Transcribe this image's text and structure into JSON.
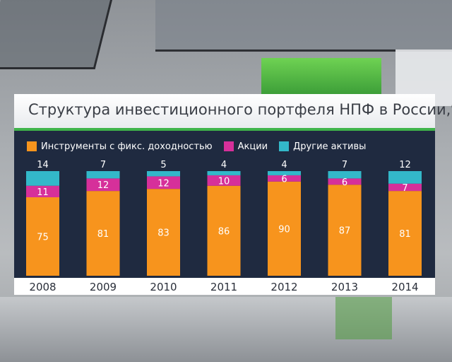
{
  "chart_data": {
    "type": "bar",
    "stacked": true,
    "title": "Структура инвестиционного портфеля НПФ в России,%",
    "categories": [
      "2008",
      "2009",
      "2010",
      "2011",
      "2012",
      "2013",
      "2014"
    ],
    "series": [
      {
        "name": "Инструменты с фикс. доходностью",
        "color": "#f7941d",
        "values": [
          75,
          81,
          83,
          86,
          90,
          87,
          81
        ]
      },
      {
        "name": "Акции",
        "color": "#d6309a",
        "values": [
          11,
          12,
          12,
          10,
          6,
          6,
          7
        ]
      },
      {
        "name": "Другие активы",
        "color": "#33b8c9",
        "values": [
          14,
          7,
          5,
          4,
          4,
          7,
          12
        ]
      }
    ],
    "ylim": [
      0,
      100
    ],
    "legend_position": "top",
    "grid": false
  }
}
